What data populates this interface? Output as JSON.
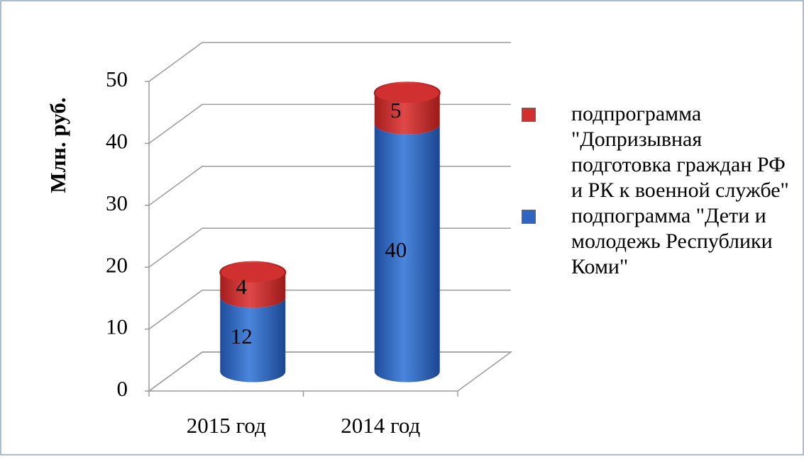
{
  "chart_data": {
    "type": "bar3d_stacked_cylinder",
    "ylabel": "Млн. руб.",
    "categories": [
      "2015 год",
      "2014 год"
    ],
    "series": [
      {
        "name": "подпограмма \"Дети и молодежь Республики Коми\"",
        "color": "#2f64c0",
        "values": [
          12,
          40
        ]
      },
      {
        "name": "подпрограмма \"Допризывная подготовка граждан РФ и РК к военной службе\"",
        "color": "#d0302f",
        "values": [
          4,
          5
        ]
      }
    ],
    "ylim": [
      0,
      50
    ],
    "yticks": [
      0,
      10,
      20,
      30,
      40,
      50
    ],
    "grid": true,
    "legend": "right"
  }
}
